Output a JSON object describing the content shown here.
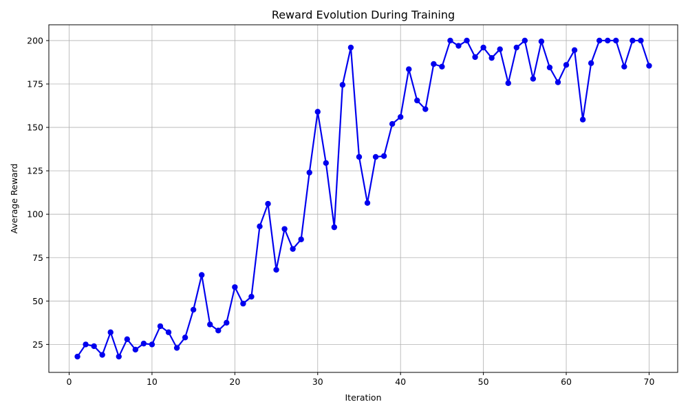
{
  "chart_data": {
    "type": "line",
    "title": "Reward Evolution During Training",
    "xlabel": "Iteration",
    "ylabel": "Average Reward",
    "xlim": [
      -2.45,
      73.45
    ],
    "ylim": [
      8.9,
      209.1
    ],
    "xticks": [
      0,
      10,
      20,
      30,
      40,
      50,
      60,
      70
    ],
    "yticks": [
      25,
      50,
      75,
      100,
      125,
      150,
      175,
      200
    ],
    "grid": true,
    "color": "#0000ee",
    "series": [
      {
        "x": [
          1,
          2,
          3,
          4,
          5,
          6,
          7,
          8,
          9,
          10,
          11,
          12,
          13,
          14,
          15,
          16,
          17,
          18,
          19,
          20,
          21,
          22,
          23,
          24,
          25,
          26,
          27,
          28,
          29,
          30,
          31,
          32,
          33,
          34,
          35,
          36,
          37,
          38,
          39,
          40,
          41,
          42,
          43,
          44,
          45,
          46,
          47,
          48,
          49,
          50,
          51,
          52,
          53,
          54,
          55,
          56,
          57,
          58,
          59,
          60,
          61,
          62,
          63,
          64,
          65,
          66,
          67,
          68,
          69,
          70
        ],
        "values": [
          18,
          25,
          24,
          19,
          32,
          18,
          28,
          22,
          25.5,
          25,
          35.5,
          32,
          23,
          29,
          45,
          65,
          36.5,
          33,
          37.5,
          58,
          48.5,
          52.5,
          93,
          106,
          68,
          91.5,
          80,
          85.5,
          124,
          159,
          129.5,
          92.5,
          174.5,
          196,
          133,
          106.5,
          133,
          133.5,
          152,
          156,
          183.5,
          165.5,
          160.5,
          186.5,
          185,
          200,
          197,
          200,
          190.5,
          196,
          190,
          195,
          175.5,
          196,
          200,
          178,
          199.5,
          184.5,
          176,
          186,
          194.5,
          154.5,
          187,
          200,
          200,
          200,
          185,
          200,
          200,
          185.5
        ]
      }
    ]
  }
}
